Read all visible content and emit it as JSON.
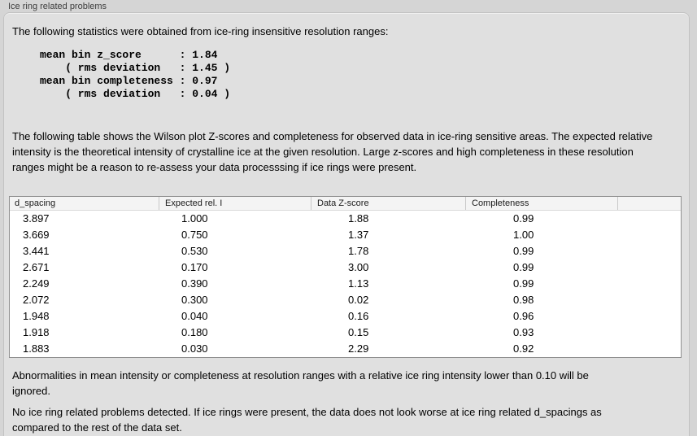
{
  "colors": {
    "page_bg": "#d5d5d5",
    "box_bg": "#e0e0e0",
    "box_border": "#c2c2c2",
    "label_text": "#3d3d3d",
    "text": "#000000",
    "table_border": "#8f8f8f",
    "table_header_bg": "#f4f4f4",
    "table_header_divider": "#c9c9c9",
    "table_row_bg": "#ffffff"
  },
  "panel": {
    "title": "Ice ring related problems"
  },
  "intro_text": "The following statistics were obtained from ice-ring insensitive resolution ranges:",
  "stats_block": {
    "lines": [
      "mean bin z_score      : 1.84",
      "    ( rms deviation   : 1.45 )",
      "mean bin completeness : 0.97",
      "    ( rms deviation   : 0.04 )"
    ],
    "mean_bin_z_score": "1.84",
    "z_score_rms_deviation": "1.45",
    "mean_bin_completeness": "0.97",
    "completeness_rms_deviation": "0.04"
  },
  "table_description": "The following table shows the Wilson plot Z-scores and completeness for observed data in ice-ring sensitive areas. The expected relative intensity is the theoretical intensity of crystalline ice at the given resolution. Large z-scores and high completeness in these resolution ranges might be a reason to re-assess your data processsing if ice rings were present.",
  "table": {
    "columns": [
      "d_spacing",
      "Expected rel. I",
      "Data Z-score",
      "Completeness",
      ""
    ],
    "rows": [
      [
        "3.897",
        "1.000",
        "1.88",
        "0.99"
      ],
      [
        "3.669",
        "0.750",
        "1.37",
        "1.00"
      ],
      [
        "3.441",
        "0.530",
        "1.78",
        "0.99"
      ],
      [
        "2.671",
        "0.170",
        "3.00",
        "0.99"
      ],
      [
        "2.249",
        "0.390",
        "1.13",
        "0.99"
      ],
      [
        "2.072",
        "0.300",
        "0.02",
        "0.98"
      ],
      [
        "1.948",
        "0.040",
        "0.16",
        "0.96"
      ],
      [
        "1.918",
        "0.180",
        "0.15",
        "0.93"
      ],
      [
        "1.883",
        "0.030",
        "2.29",
        "0.92"
      ]
    ]
  },
  "ignore_note": "Abnormalities in mean intensity or completeness at resolution ranges with a relative ice ring intensity lower than 0.10 will be ignored.",
  "conclusion": "No ice ring related problems detected. If ice rings were present, the data does not look worse at ice ring related d_spacings as compared to the rest of the data set."
}
